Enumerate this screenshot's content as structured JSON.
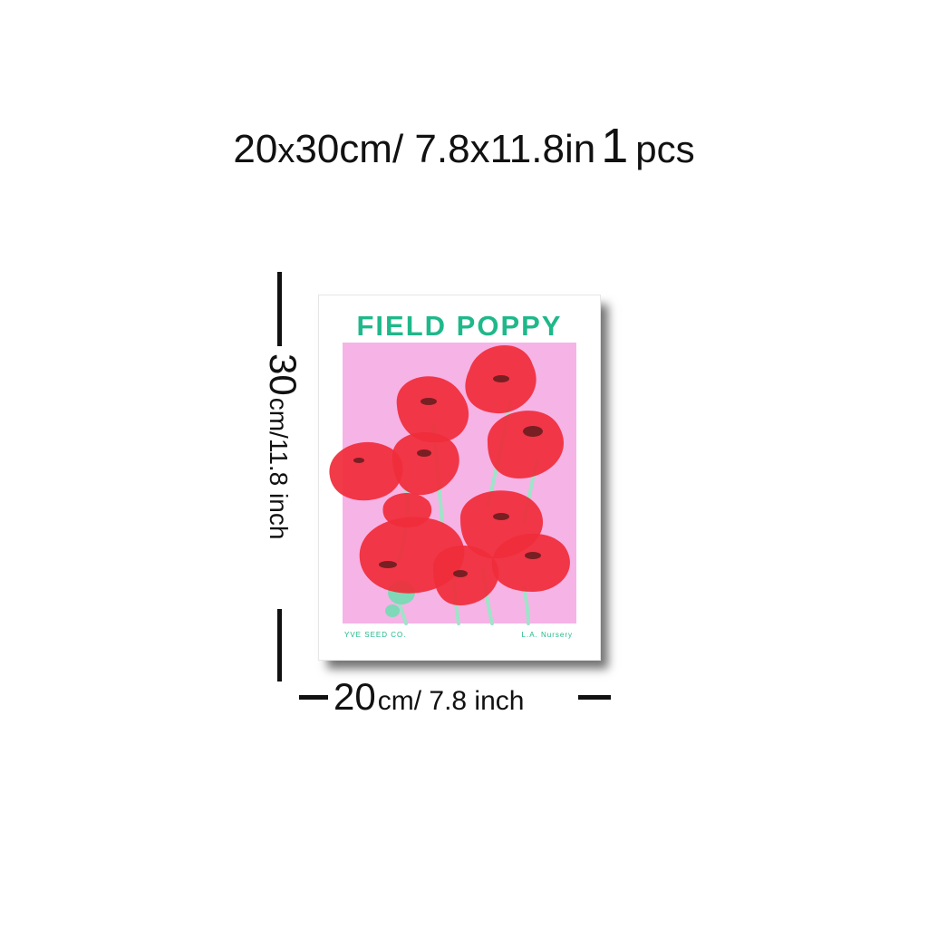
{
  "header": {
    "size_cm_a": "20",
    "size_cm_x": "x",
    "size_cm_b": "30cm/ 7.8x11.8in",
    "quantity": "1",
    "quantity_unit": "pcs"
  },
  "height_label": {
    "value": "30",
    "unit": "cm/11.8 inch"
  },
  "width_label": {
    "value": "20",
    "unit": "cm/ 7.8 inch"
  },
  "poster": {
    "title": "FIELD POPPY",
    "footer_left": "YVE SEED CO.",
    "footer_right": "L.A. Nursery",
    "title_color": "#1fb88a",
    "background_color": "#f6b3e6",
    "flower_color": "#f02c3a",
    "stem_color": "#9fe3c8"
  }
}
